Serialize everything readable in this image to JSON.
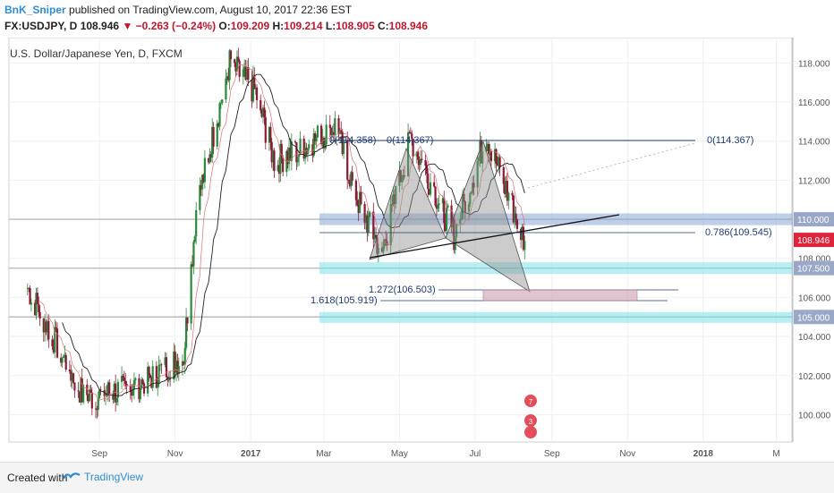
{
  "header": {
    "author": "BnK_Sniper",
    "published": "published on TradingView.com, August 10, 2017 22:36 EST",
    "symbol": "FX:USDJPY, D",
    "last": "108.946",
    "change": "−0.263 (−0.24%)",
    "o_label": "O:",
    "o": "109.209",
    "h_label": "H:",
    "h": "109.214",
    "l_label": "L:",
    "l": "108.905",
    "c_label": "C:",
    "c": "108.946"
  },
  "footer": {
    "created_with": "Created with",
    "brand": "TradingView"
  },
  "chart_data": {
    "type": "candlestick",
    "title": "U.S. Dollar/Japanese Yen, D, FXCM",
    "ylim": [
      98.6,
      119.3
    ],
    "y_ticks": [
      "100.000",
      "102.000",
      "104.000",
      "106.000",
      "108.000",
      "110.000",
      "112.000",
      "114.000",
      "116.000",
      "118.000"
    ],
    "x_ticks": [
      "Sep",
      "Nov",
      "2017",
      "Mar",
      "May",
      "Jul",
      "Sep",
      "Nov",
      "2018",
      "M"
    ],
    "price_badges": [
      {
        "label": "110.000",
        "value": 110.0,
        "color": "#9aa8c8"
      },
      {
        "label": "108.946",
        "value": 108.946,
        "color": "#e0223a"
      },
      {
        "label": "107.500",
        "value": 107.5,
        "color": "#9aa8c8"
      },
      {
        "label": "105.000",
        "value": 105.0,
        "color": "#9aa8c8"
      }
    ],
    "zones": [
      {
        "from": 109.7,
        "to": 110.3,
        "color": "#7f9fd6"
      },
      {
        "from": 107.2,
        "to": 107.8,
        "color": "#6fe0ea"
      },
      {
        "from": 104.7,
        "to": 105.25,
        "color": "#6fe0ea"
      }
    ],
    "fib_labels": [
      {
        "text": "0(114.358)",
        "value": 114.358
      },
      {
        "text": "0(114.367)",
        "value": 114.367
      },
      {
        "text": "0(114.367)",
        "value": 114.367
      },
      {
        "text": "0.786(109.545)",
        "value": 109.545
      },
      {
        "text": "1.272(106.503)",
        "value": 106.503
      },
      {
        "text": "1.618(105.919)",
        "value": 105.919
      }
    ],
    "anchors": [
      {
        "date": "2016-07-05",
        "price": 106.5
      },
      {
        "date": "2016-08-20",
        "price": 100.8
      },
      {
        "date": "2016-10-01",
        "price": 101.5
      },
      {
        "date": "2016-11-08",
        "price": 103.0
      },
      {
        "date": "2016-11-18",
        "price": 110.5
      },
      {
        "date": "2016-12-15",
        "price": 118.0
      },
      {
        "date": "2017-01-05",
        "price": 116.5
      },
      {
        "date": "2017-01-20",
        "price": 113.0
      },
      {
        "date": "2017-02-10",
        "price": 113.5
      },
      {
        "date": "2017-03-10",
        "price": 114.8
      },
      {
        "date": "2017-03-28",
        "price": 111.0
      },
      {
        "date": "2017-04-17",
        "price": 108.3
      },
      {
        "date": "2017-05-10",
        "price": 114.2
      },
      {
        "date": "2017-06-14",
        "price": 109.2
      },
      {
        "date": "2017-07-10",
        "price": 114.3
      },
      {
        "date": "2017-08-10",
        "price": 108.9
      }
    ]
  }
}
